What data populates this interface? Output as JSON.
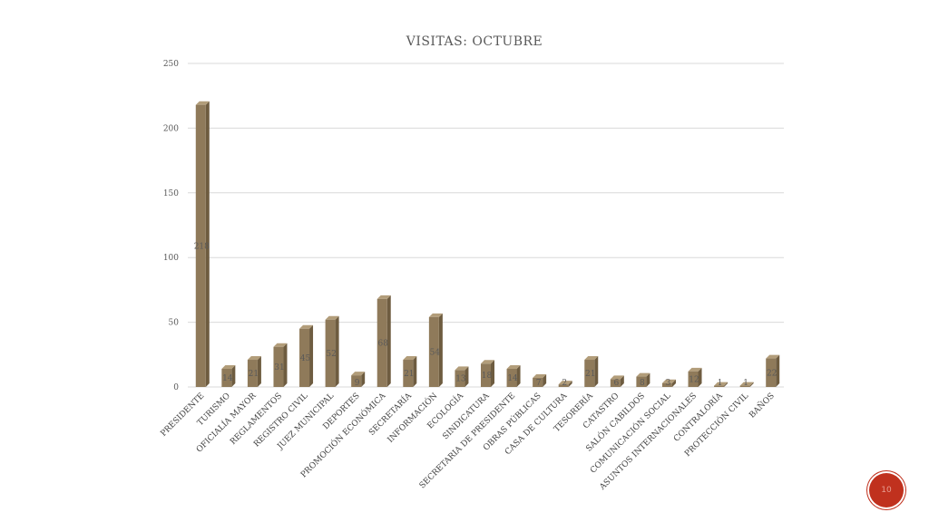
{
  "chart_data": {
    "type": "bar",
    "title": "VISITAS: OCTUBRE",
    "xlabel": "",
    "ylabel": "",
    "ylim": [
      0,
      250
    ],
    "yticks": [
      0,
      50,
      100,
      150,
      200,
      250
    ],
    "grid": true,
    "legend": "none",
    "categories": [
      "PRESIDENTE",
      "TURISMO",
      "OFICIALÍA MAYOR",
      "REGLAMENTOS",
      "REGISTRO CIVIL",
      "JUEZ MUNICIPAL",
      "DEPORTES",
      "PROMOCIÓN ECONÓMICA",
      "SECRETARÍA",
      "INFORMACIÓN",
      "ECOLOGÍA",
      "SINDICATURA",
      "SECRETARIA DE PRESIDENTE",
      "OBRAS PÚBLICAS",
      "CASA DE CULTURA",
      "TESORERÍA",
      "CATASTRO",
      "SALÓN CABILDOS",
      "COMUNICACIÓN SOCIAL",
      "ASUNTOS INTERNACIONALES",
      "CONTRALORÍA",
      "PROTECCIÓN CIVIL",
      "BAÑOS"
    ],
    "values": [
      218,
      14,
      21,
      31,
      45,
      52,
      9,
      68,
      21,
      54,
      13,
      18,
      14,
      7,
      2,
      21,
      6,
      8,
      3,
      12,
      1,
      1,
      22
    ],
    "bar_color": "#8f7a5a"
  },
  "page_number": "10"
}
